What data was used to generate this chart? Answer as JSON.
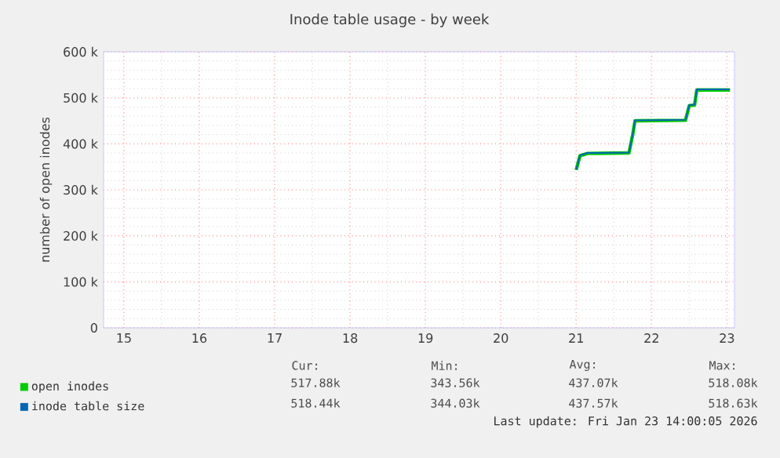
{
  "chart_data": {
    "type": "line",
    "title": "Inode table usage - by week",
    "ylabel": "number of open inodes",
    "x": [
      21.0,
      21.05,
      21.15,
      21.7,
      21.75,
      21.78,
      22.45,
      22.5,
      22.57,
      22.6,
      23.04
    ],
    "series": [
      {
        "name": "open inodes",
        "color": "#00cc00",
        "values": [
          343000,
          374000,
          379000,
          380000,
          420000,
          450000,
          451000,
          483000,
          484000,
          517000,
          517000
        ]
      },
      {
        "name": "inode table size",
        "color": "#0066b3",
        "values": [
          344000,
          375000,
          380000,
          381000,
          421000,
          451000,
          452000,
          484000,
          485000,
          518000,
          518000
        ]
      }
    ],
    "xlim": [
      14.73,
      23.1
    ],
    "xticks": [
      15,
      16,
      17,
      18,
      19,
      20,
      21,
      22,
      23
    ],
    "ylim": [
      0,
      600000
    ],
    "yticks": [
      {
        "value": 0,
        "label": "0"
      },
      {
        "value": 100000,
        "label": "100 k"
      },
      {
        "value": 200000,
        "label": "200 k"
      },
      {
        "value": 300000,
        "label": "300 k"
      },
      {
        "value": 400000,
        "label": "400 k"
      },
      {
        "value": 500000,
        "label": "500 k"
      },
      {
        "value": 600000,
        "label": "600 k"
      }
    ],
    "grid": true,
    "legend": "bottom left",
    "line_style": "solid",
    "marker": "none",
    "annotations": [
      "Cur:",
      "Min:",
      "Avg:",
      "Max:",
      "517.88k",
      "343.56k",
      "437.07k",
      "518.08k",
      "518.44k",
      "344.03k",
      "437.57k",
      "518.63k",
      "Last update: Fri Jan 23 14:00:05 2026"
    ]
  }
}
